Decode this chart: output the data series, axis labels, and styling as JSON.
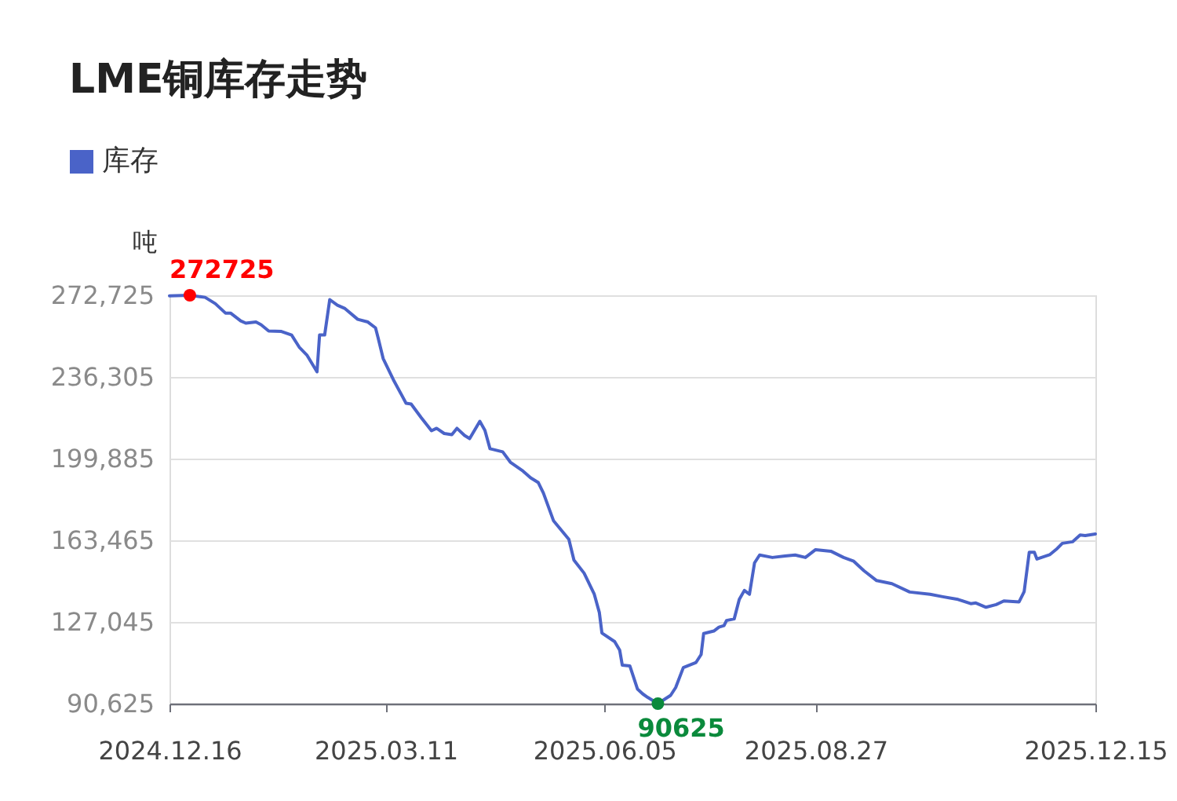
{
  "chart_data": {
    "type": "line",
    "title": "LME铜库存走势",
    "ylabel": "吨",
    "x": [
      "2024-12-16",
      "2024-12-24",
      "2024-12-30",
      "2025-01-03",
      "2025-01-07",
      "2025-01-09",
      "2025-01-13",
      "2025-01-15",
      "2025-01-19",
      "2025-01-21",
      "2025-01-24",
      "2025-01-29",
      "2025-02-02",
      "2025-02-05",
      "2025-02-08",
      "2025-02-12",
      "2025-02-13",
      "2025-02-15",
      "2025-02-17",
      "2025-02-20",
      "2025-02-23",
      "2025-02-28",
      "2025-03-04",
      "2025-03-07",
      "2025-03-08",
      "2025-03-10",
      "2025-03-14",
      "2025-03-19",
      "2025-03-21",
      "2025-03-25",
      "2025-03-29",
      "2025-03-31",
      "2025-04-03",
      "2025-04-06",
      "2025-04-08",
      "2025-04-11",
      "2025-04-13",
      "2025-04-17",
      "2025-04-19",
      "2025-04-21",
      "2025-04-26",
      "2025-04-29",
      "2025-05-02",
      "2025-05-04",
      "2025-05-07",
      "2025-05-10",
      "2025-05-12",
      "2025-05-16",
      "2025-05-22",
      "2025-05-24",
      "2025-05-28",
      "2025-06-01",
      "2025-06-03",
      "2025-06-04",
      "2025-06-09",
      "2025-06-11",
      "2025-06-12",
      "2025-06-15",
      "2025-06-18",
      "2025-06-20",
      "2025-06-22",
      "2025-06-26",
      "2025-07-01",
      "2025-07-03",
      "2025-07-06",
      "2025-07-11",
      "2025-07-13",
      "2025-07-14",
      "2025-07-18",
      "2025-07-20",
      "2025-07-22",
      "2025-07-23",
      "2025-07-26",
      "2025-07-28",
      "2025-07-30",
      "2025-08-01",
      "2025-08-03",
      "2025-08-05",
      "2025-08-10",
      "2025-08-15",
      "2025-08-19",
      "2025-08-23",
      "2025-08-27",
      "2025-09-02",
      "2025-09-07",
      "2025-09-11",
      "2025-09-15",
      "2025-09-20",
      "2025-09-26",
      "2025-10-03",
      "2025-10-11",
      "2025-10-16",
      "2025-10-22",
      "2025-10-27",
      "2025-10-29",
      "2025-11-02",
      "2025-11-06",
      "2025-11-09",
      "2025-11-15",
      "2025-11-17",
      "2025-11-19",
      "2025-11-21",
      "2025-11-22",
      "2025-11-27",
      "2025-11-30",
      "2025-12-02",
      "2025-12-06",
      "2025-12-09",
      "2025-12-11",
      "2025-12-15"
    ],
    "series": [
      {
        "name": "库存",
        "color": "#4a63c8",
        "values": [
          272500,
          272725,
          271800,
          269000,
          264800,
          264800,
          261300,
          260300,
          260800,
          259600,
          256800,
          256600,
          255000,
          249600,
          246100,
          238600,
          255000,
          255000,
          270800,
          268300,
          266800,
          262000,
          260800,
          258200,
          253800,
          244500,
          235100,
          224600,
          224200,
          218100,
          212300,
          213400,
          211100,
          210600,
          213400,
          210200,
          208800,
          216500,
          212500,
          204300,
          202900,
          198300,
          195900,
          194300,
          191300,
          189200,
          184500,
          172100,
          163900,
          154600,
          148800,
          139400,
          131200,
          122100,
          118300,
          114400,
          107800,
          107400,
          97100,
          95000,
          93400,
          90625,
          94300,
          97800,
          106700,
          109000,
          112500,
          121900,
          123000,
          124700,
          125400,
          127700,
          128400,
          137100,
          141100,
          139400,
          153400,
          156900,
          155800,
          156500,
          156900,
          155800,
          159300,
          158600,
          155800,
          154100,
          149900,
          145500,
          144100,
          140400,
          139400,
          138300,
          137100,
          135200,
          135500,
          133600,
          134800,
          136400,
          136000,
          140600,
          158100,
          158100,
          155100,
          157000,
          159800,
          162100,
          162800,
          165800,
          165600,
          166300
        ]
      }
    ],
    "xlim": [
      "2024-12-16",
      "2025-12-15"
    ],
    "xticks": [
      {
        "value": "2024-12-16",
        "label": "2024.12.16"
      },
      {
        "value": "2025-03-11",
        "label": "2025.03.11"
      },
      {
        "value": "2025-06-05",
        "label": "2025.06.05"
      },
      {
        "value": "2025-08-27",
        "label": "2025.08.27"
      },
      {
        "value": "2025-12-15",
        "label": "2025.12.15"
      }
    ],
    "ylim": [
      90625,
      272725
    ],
    "yticks": [
      {
        "value": 90625,
        "label": "90,625"
      },
      {
        "value": 127045,
        "label": "127,045"
      },
      {
        "value": 163465,
        "label": "163,465"
      },
      {
        "value": 199885,
        "label": "199,885"
      },
      {
        "value": 236305,
        "label": "236,305"
      },
      {
        "value": 272725,
        "label": "272,725"
      }
    ],
    "grid": "y",
    "legend": "top left",
    "annotations": [
      {
        "text": "272725",
        "x": "2024-12-24",
        "y": 272725
      },
      {
        "text": "90625",
        "x": "2025-06-26",
        "y": 90625
      }
    ]
  }
}
